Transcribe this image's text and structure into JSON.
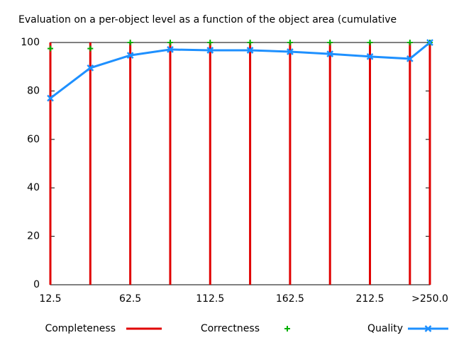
{
  "chart_data": {
    "type": "line",
    "title": "Evaluation on a per-object level as a function of the object area (cumulative",
    "x": [
      12.5,
      37.5,
      62.5,
      87.5,
      112.5,
      137.5,
      162.5,
      187.5,
      212.5,
      237.5,
      250
    ],
    "series": [
      {
        "name": "Completeness",
        "color": "#e00000",
        "style": "impulses",
        "values": [
          100,
          100,
          100,
          100,
          100,
          100,
          100,
          100,
          100,
          100,
          100
        ]
      },
      {
        "name": "Correctness",
        "color": "#00b000",
        "style": "points",
        "values": [
          97.5,
          97.5,
          100,
          100,
          100,
          100,
          100,
          100,
          100,
          100,
          100
        ]
      },
      {
        "name": "Quality",
        "color": "#1e90ff",
        "style": "linespoints",
        "values": [
          77,
          89.5,
          94.7,
          97.1,
          96.8,
          96.8,
          96.2,
          95.3,
          94.2,
          93.3,
          100
        ]
      }
    ],
    "xlim": [
      12.5,
      250
    ],
    "xticks": [
      12.5,
      62.5,
      112.5,
      162.5,
      212.5,
      {
        "value": 250,
        "label": ">250.0"
      }
    ],
    "ylim": [
      0,
      100
    ],
    "yticks": [
      0,
      20,
      40,
      60,
      80,
      100
    ],
    "grid": false,
    "legend": "bottom"
  }
}
